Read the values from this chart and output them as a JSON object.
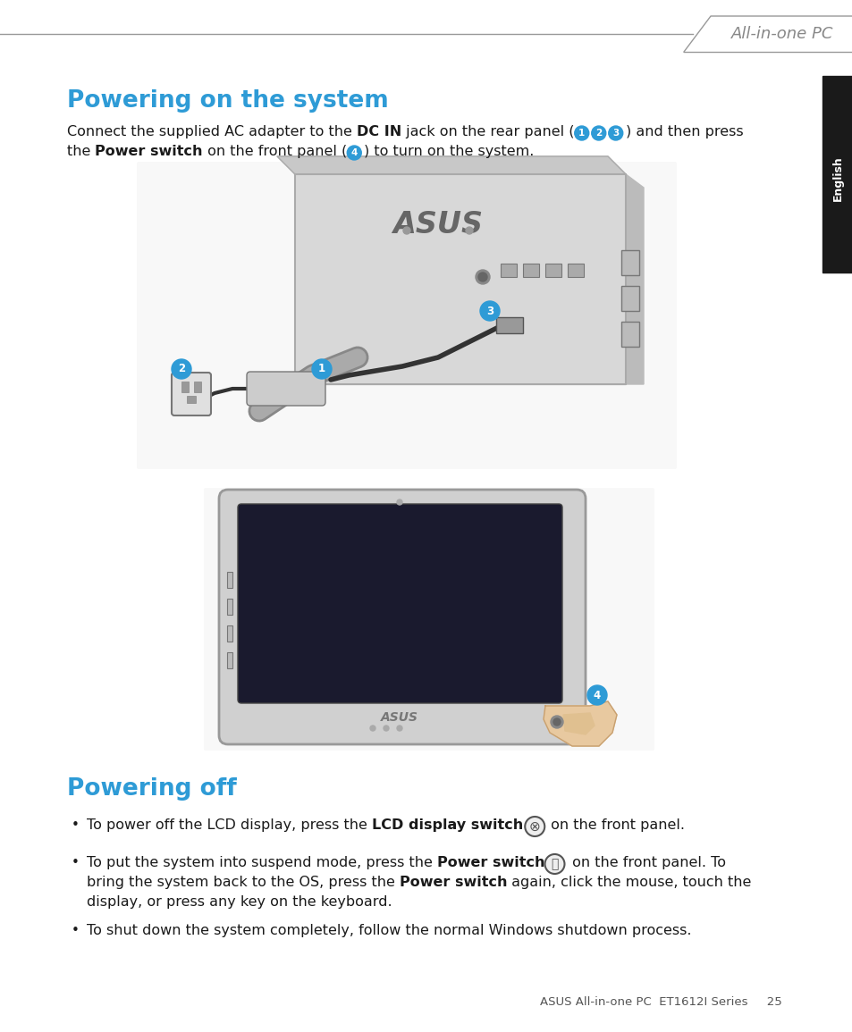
{
  "bg_color": "#ffffff",
  "header_line_color": "#999999",
  "header_text": "All-in-one PC",
  "header_text_color": "#888888",
  "sidebar_color": "#1a1a1a",
  "sidebar_text": "English",
  "sidebar_text_color": "#ffffff",
  "title1": "Powering on the system",
  "title1_color": "#2E9BD6",
  "title2": "Powering off",
  "title2_color": "#2E9BD6",
  "bullet3": "To shut down the system completely, follow the normal Windows shutdown process.",
  "footer_text": "ASUS All-in-one PC  ET1612I Series     25",
  "footer_color": "#555555",
  "circle_color": "#2E9BD6",
  "circle_text_color": "#ffffff"
}
